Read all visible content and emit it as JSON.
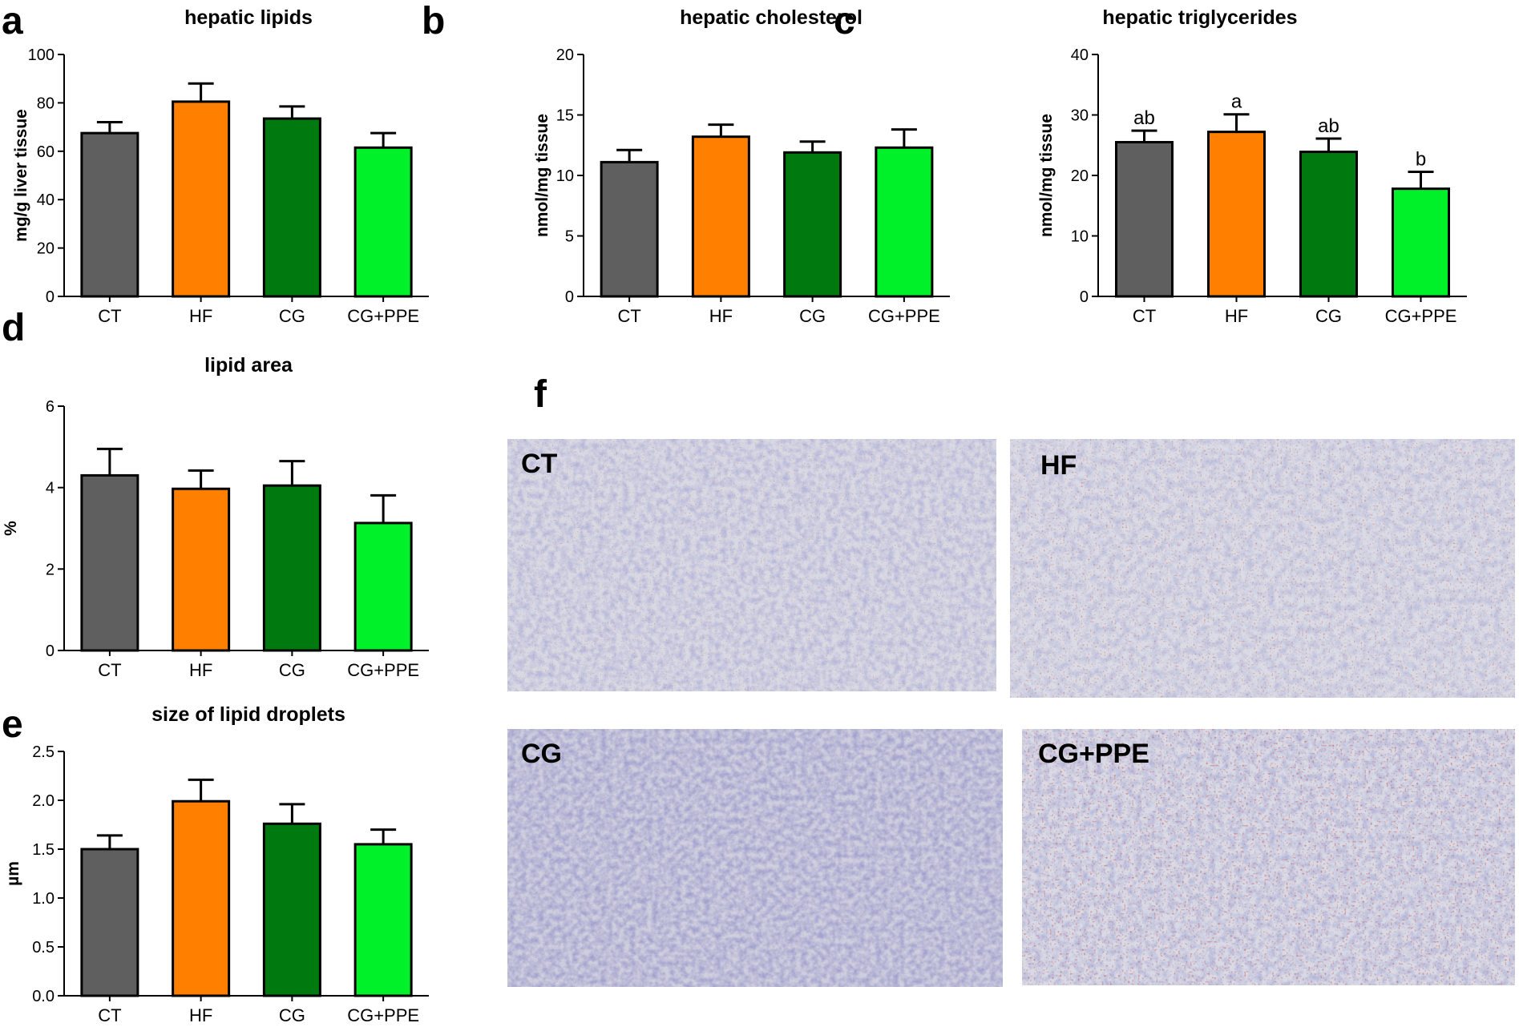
{
  "colors": {
    "CT": "#5f5f5f",
    "HF": "#ff7f00",
    "CG": "#007a0f",
    "CG+PPE": "#00f02a"
  },
  "chart_data": [
    {
      "panel": "a",
      "type": "bar",
      "title": "hepatic lipids",
      "ylabel": "mg/g liver tissue",
      "categories": [
        "CT",
        "HF",
        "CG",
        "CG+PPE"
      ],
      "values": [
        67.5,
        80.5,
        73.5,
        61.5
      ],
      "errors": [
        4.5,
        7.5,
        5.0,
        6.0
      ],
      "ylim": [
        0,
        100
      ],
      "yticks": [
        "0",
        "20",
        "40",
        "60",
        "80",
        "100"
      ],
      "labels": []
    },
    {
      "panel": "b",
      "type": "bar",
      "title": "hepatic cholesterol",
      "ylabel": "nmol/mg tissue",
      "categories": [
        "CT",
        "HF",
        "CG",
        "CG+PPE"
      ],
      "values": [
        11.1,
        13.2,
        11.9,
        12.3
      ],
      "errors": [
        1.0,
        1.0,
        0.9,
        1.5
      ],
      "ylim": [
        0,
        20
      ],
      "yticks": [
        "0",
        "5",
        "10",
        "15",
        "20"
      ],
      "labels": []
    },
    {
      "panel": "c",
      "type": "bar",
      "title": "hepatic triglycerides",
      "ylabel": "nmol/mg tissue",
      "categories": [
        "CT",
        "HF",
        "CG",
        "CG+PPE"
      ],
      "values": [
        25.5,
        27.2,
        23.9,
        17.8
      ],
      "errors": [
        1.9,
        2.9,
        2.2,
        2.8
      ],
      "ylim": [
        0,
        40
      ],
      "yticks": [
        "0",
        "10",
        "20",
        "30",
        "40"
      ],
      "labels": [
        "ab",
        "a",
        "ab",
        "b"
      ]
    },
    {
      "panel": "d",
      "type": "bar",
      "title": "lipid area",
      "ylabel": "%",
      "categories": [
        "CT",
        "HF",
        "CG",
        "CG+PPE"
      ],
      "values": [
        4.3,
        3.97,
        4.05,
        3.13
      ],
      "errors": [
        0.65,
        0.45,
        0.6,
        0.68
      ],
      "ylim": [
        0,
        6
      ],
      "yticks": [
        "0",
        "2",
        "4",
        "6"
      ],
      "labels": []
    },
    {
      "panel": "e",
      "type": "bar",
      "title": "size of lipid droplets",
      "ylabel": "µm",
      "categories": [
        "CT",
        "HF",
        "CG",
        "CG+PPE"
      ],
      "values": [
        1.5,
        1.99,
        1.76,
        1.55
      ],
      "errors": [
        0.14,
        0.22,
        0.2,
        0.15
      ],
      "ylim": [
        0,
        2.5
      ],
      "yticks": [
        "0.0",
        "0.5",
        "1.0",
        "1.5",
        "2.0",
        "2.5"
      ],
      "labels": []
    }
  ],
  "panel_f": {
    "letter": "f",
    "images": [
      "CT",
      "HF",
      "CG",
      "CG+PPE"
    ]
  }
}
